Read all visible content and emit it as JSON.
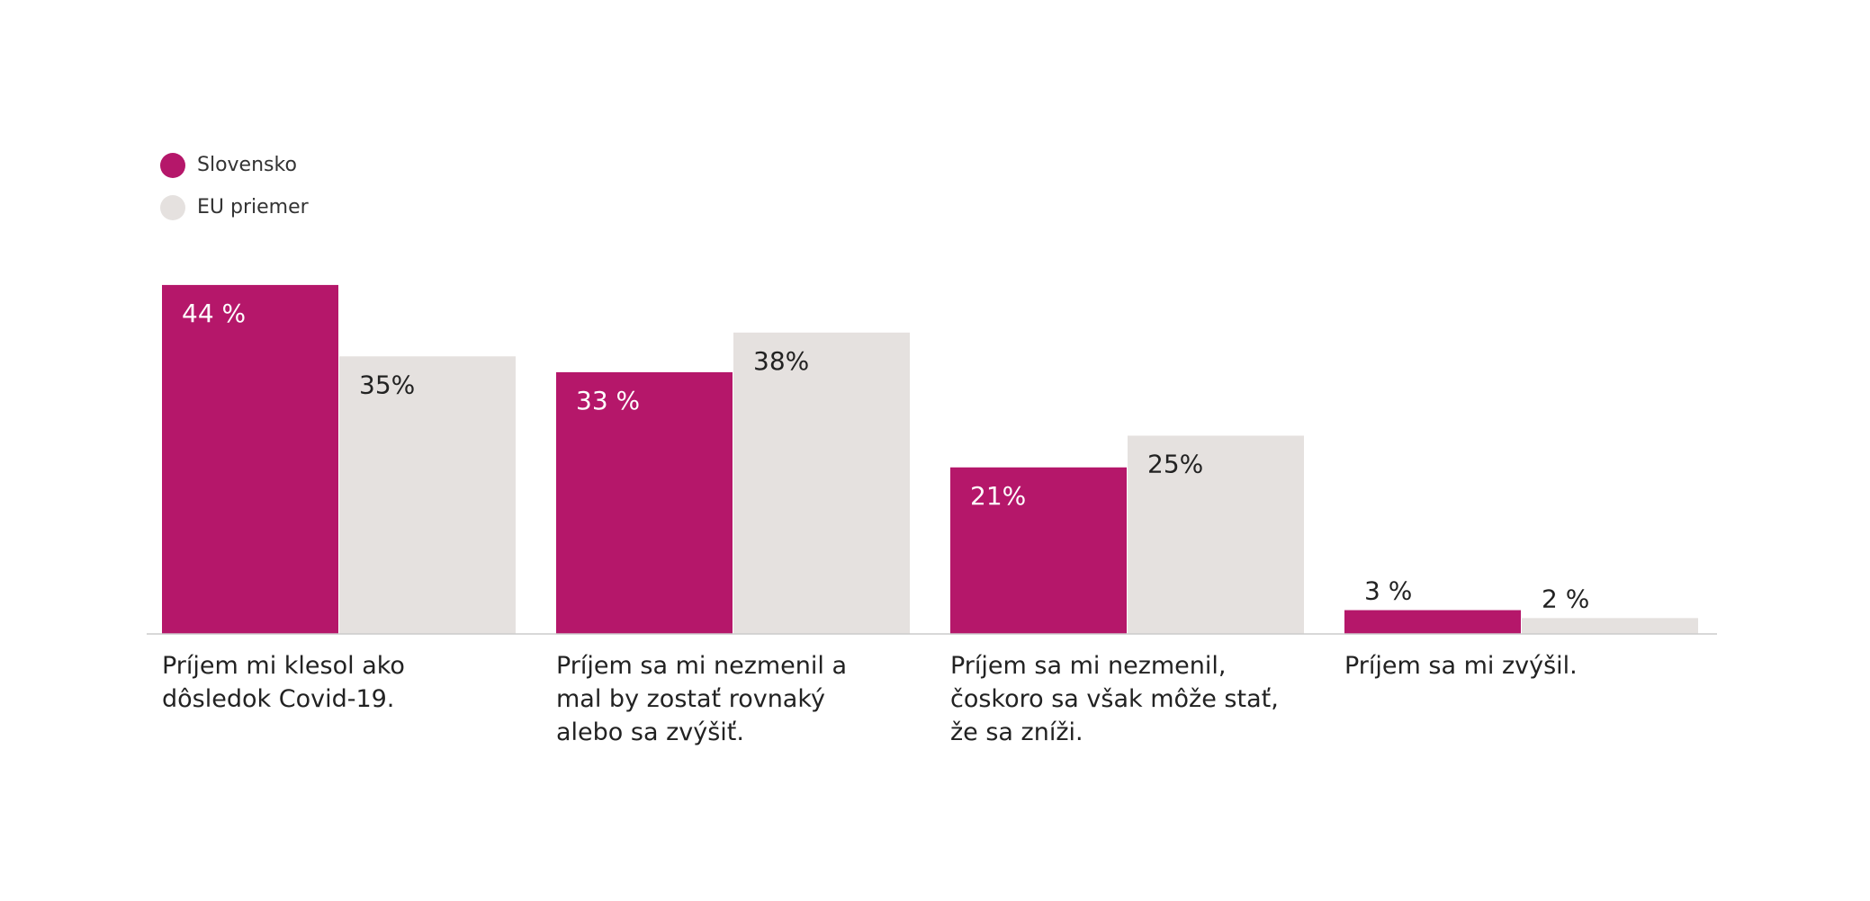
{
  "chart_data": {
    "type": "bar",
    "categories": [
      "Príjem mi klesol ako dôsledok Covid-19.",
      "Príjem sa mi nezmenil a mal by zostať rovnaký alebo sa zvýšiť.",
      "Príjem sa mi nezmenil, čoskoro sa však môže stať, že sa zníži.",
      "Príjem sa mi zvýšil."
    ],
    "series": [
      {
        "name": "Slovensko",
        "color": "#b5176a",
        "values": [
          44,
          33,
          21,
          3
        ],
        "value_labels": [
          "44 %",
          "33 %",
          "21%",
          "3 %"
        ]
      },
      {
        "name": "EU priemer",
        "color": "#e5e1df",
        "values": [
          35,
          38,
          25,
          2
        ],
        "value_labels": [
          "35%",
          "38%",
          "25%",
          "2 %"
        ]
      }
    ]
  }
}
